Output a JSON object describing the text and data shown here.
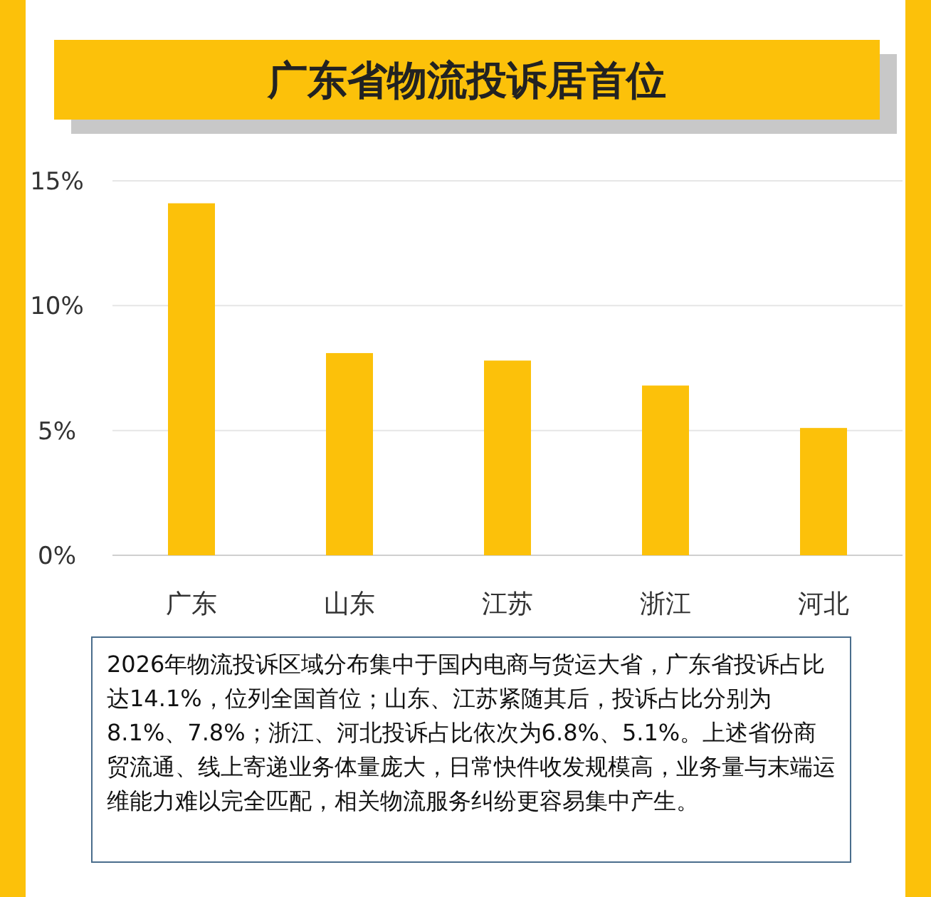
{
  "chart_data": {
    "type": "bar",
    "title": "广东省物流投诉居首位",
    "categories": [
      "广东",
      "山东",
      "江苏",
      "浙江",
      "河北"
    ],
    "values": [
      14.1,
      8.1,
      7.8,
      6.8,
      5.1
    ],
    "color": "#fcc10a",
    "ylim": [
      0,
      15
    ],
    "yticks": [
      {
        "value": 0,
        "label": "0%"
      },
      {
        "value": 5,
        "label": "5%"
      },
      {
        "value": 10,
        "label": "10%"
      },
      {
        "value": 15,
        "label": "15%"
      }
    ],
    "grid": "y",
    "annotations": [
      "2026年物流投诉区域分布集中于国内电商与货运大省，广东省投诉占比达14.1%，位列全国首位；山东、江苏紧随其后，投诉占比分别为8.1%、7.8%；浙江、河北投诉占比依次为6.8%、5.1%。上述省份商贸流通、线上寄递业务体量庞大，日常快件收发规模高，业务量与末端运维能力难以完全匹配，相关物流服务纠纷更容易集中产生。"
    ]
  }
}
